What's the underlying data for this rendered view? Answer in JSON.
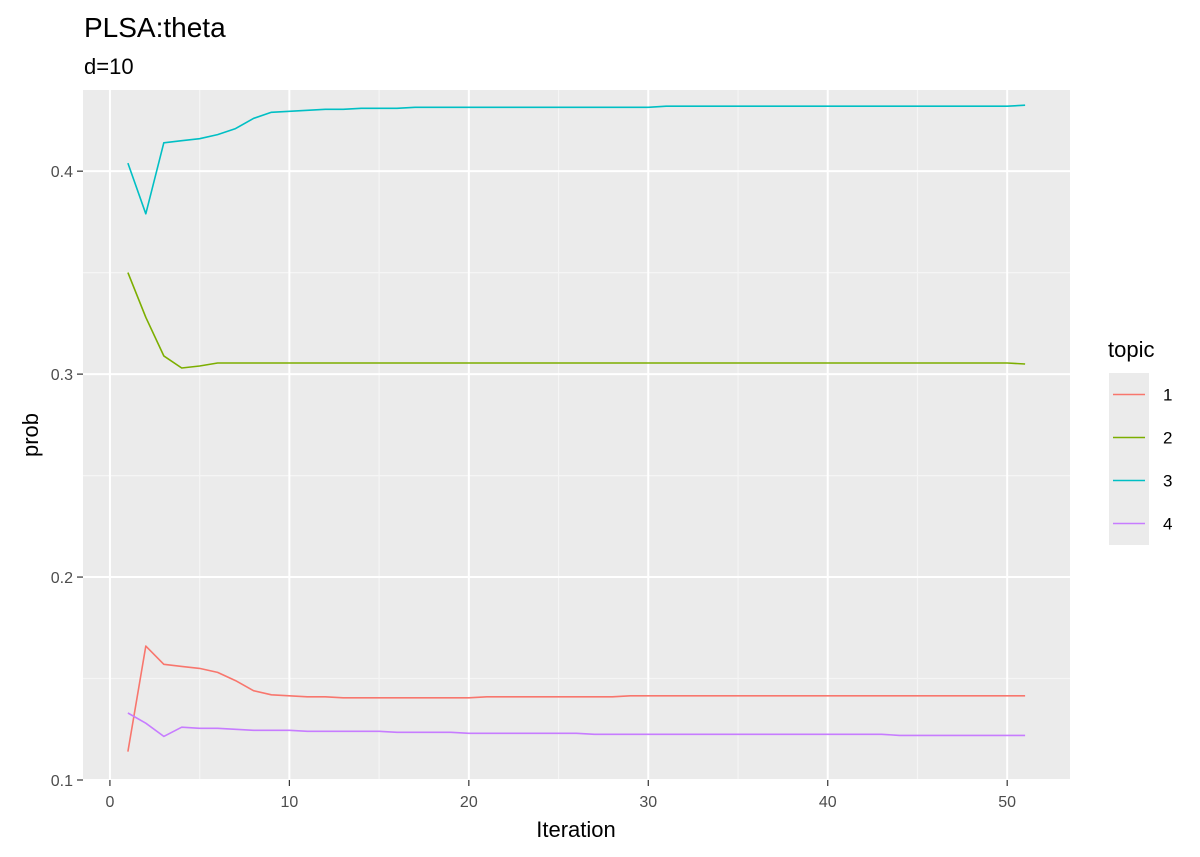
{
  "chart_data": {
    "type": "line",
    "title": "PLSA:theta",
    "subtitle": "d=10",
    "xlabel": "Iteration",
    "ylabel": "prob",
    "xlim": [
      -1.5,
      53.5
    ],
    "ylim": [
      0.1,
      0.44
    ],
    "x_ticks": [
      0,
      10,
      20,
      30,
      40,
      50
    ],
    "x_tick_labels": [
      "0",
      "10",
      "20",
      "30",
      "40",
      "50"
    ],
    "y_ticks": [
      0.1,
      0.2,
      0.3,
      0.4
    ],
    "y_tick_labels": [
      "0.1",
      "0.2",
      "0.3",
      "0.4"
    ],
    "grid": true,
    "legend_title": "topic",
    "legend_position": "right",
    "x": [
      1,
      2,
      3,
      4,
      5,
      6,
      7,
      8,
      9,
      10,
      11,
      12,
      13,
      14,
      15,
      16,
      17,
      18,
      19,
      20,
      21,
      22,
      23,
      24,
      25,
      26,
      27,
      28,
      29,
      30,
      31,
      32,
      33,
      34,
      35,
      36,
      37,
      38,
      39,
      40,
      41,
      42,
      43,
      44,
      45,
      46,
      47,
      48,
      49,
      50,
      51
    ],
    "series": [
      {
        "name": "1",
        "color": "#F8766D",
        "values": [
          0.114,
          0.166,
          0.157,
          0.156,
          0.155,
          0.153,
          0.149,
          0.144,
          0.142,
          0.1415,
          0.141,
          0.141,
          0.1405,
          0.1405,
          0.1405,
          0.1405,
          0.1405,
          0.1405,
          0.1405,
          0.1405,
          0.141,
          0.141,
          0.141,
          0.141,
          0.141,
          0.141,
          0.141,
          0.141,
          0.1415,
          0.1415,
          0.1415,
          0.1415,
          0.1415,
          0.1415,
          0.1415,
          0.1415,
          0.1415,
          0.1415,
          0.1415,
          0.1415,
          0.1415,
          0.1415,
          0.1415,
          0.1415,
          0.1415,
          0.1415,
          0.1415,
          0.1415,
          0.1415,
          0.1415,
          0.1415
        ]
      },
      {
        "name": "2",
        "color": "#7CAE00",
        "values": [
          0.35,
          0.328,
          0.309,
          0.303,
          0.304,
          0.3055,
          0.3055,
          0.3055,
          0.3055,
          0.3055,
          0.3055,
          0.3055,
          0.3055,
          0.3055,
          0.3055,
          0.3055,
          0.3055,
          0.3055,
          0.3055,
          0.3055,
          0.3055,
          0.3055,
          0.3055,
          0.3055,
          0.3055,
          0.3055,
          0.3055,
          0.3055,
          0.3055,
          0.3055,
          0.3055,
          0.3055,
          0.3055,
          0.3055,
          0.3055,
          0.3055,
          0.3055,
          0.3055,
          0.3055,
          0.3055,
          0.3055,
          0.3055,
          0.3055,
          0.3055,
          0.3055,
          0.3055,
          0.3055,
          0.3055,
          0.3055,
          0.3055,
          0.305
        ]
      },
      {
        "name": "3",
        "color": "#00BFC4",
        "values": [
          0.404,
          0.379,
          0.414,
          0.415,
          0.416,
          0.418,
          0.421,
          0.426,
          0.429,
          0.4295,
          0.43,
          0.4305,
          0.4305,
          0.431,
          0.431,
          0.431,
          0.4315,
          0.4315,
          0.4315,
          0.4315,
          0.4315,
          0.4315,
          0.4315,
          0.4315,
          0.4315,
          0.4315,
          0.4315,
          0.4315,
          0.4315,
          0.4315,
          0.432,
          0.432,
          0.432,
          0.432,
          0.432,
          0.432,
          0.432,
          0.432,
          0.432,
          0.432,
          0.432,
          0.432,
          0.432,
          0.432,
          0.432,
          0.432,
          0.432,
          0.432,
          0.432,
          0.432,
          0.4325
        ]
      },
      {
        "name": "4",
        "color": "#C77CFF",
        "values": [
          0.133,
          0.128,
          0.1215,
          0.126,
          0.1255,
          0.1255,
          0.125,
          0.1245,
          0.1245,
          0.1245,
          0.124,
          0.124,
          0.124,
          0.124,
          0.124,
          0.1235,
          0.1235,
          0.1235,
          0.1235,
          0.123,
          0.123,
          0.123,
          0.123,
          0.123,
          0.123,
          0.123,
          0.1225,
          0.1225,
          0.1225,
          0.1225,
          0.1225,
          0.1225,
          0.1225,
          0.1225,
          0.1225,
          0.1225,
          0.1225,
          0.1225,
          0.1225,
          0.1225,
          0.1225,
          0.1225,
          0.1225,
          0.122,
          0.122,
          0.122,
          0.122,
          0.122,
          0.122,
          0.122,
          0.122
        ]
      }
    ]
  }
}
